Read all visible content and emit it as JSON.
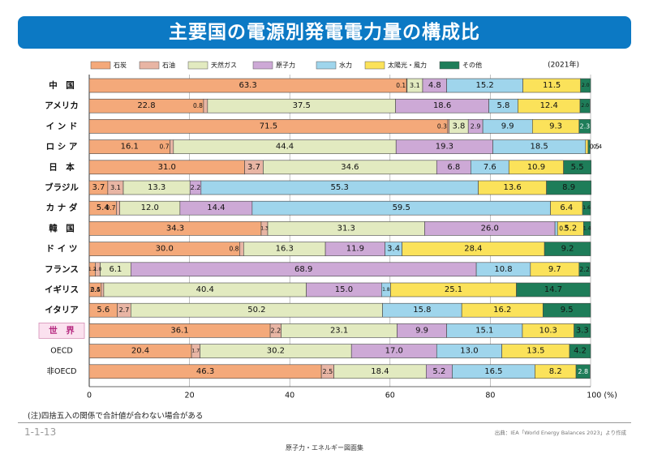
{
  "title": "主要国の電源別発電電力量の構成比",
  "year_label": "(2021年)",
  "note": "(注)四捨五入の関係で合計値が合わない場合がある",
  "page_number": "1-1-13",
  "source": "出典：IEA「World Energy Balances 2023」より作成",
  "book_title": "原子力・エネルギー図面集",
  "chart_data": {
    "type": "bar",
    "orientation": "horizontal",
    "stacked": true,
    "xlim": [
      0,
      100
    ],
    "x_ticks": [
      "0",
      "20",
      "40",
      "60",
      "80",
      "100 (%)"
    ],
    "legend_position": "top",
    "categories": [
      "中　国",
      "アメリカ",
      "イ ン ド",
      "ロ シ ア",
      "日　本",
      "ブラジル",
      "カ ナ ダ",
      "韓　国",
      "ド イ ツ",
      "フランス",
      "イギリス",
      "イタリア",
      "世　界",
      "OECD",
      "非OECD"
    ],
    "series": [
      {
        "name": "石炭",
        "color": "#f4a97a",
        "values": [
          63.3,
          22.8,
          71.5,
          16.1,
          31.0,
          3.7,
          5.4,
          34.3,
          30.0,
          1.2,
          2.4,
          5.6,
          36.1,
          20.4,
          46.3
        ],
        "labels": [
          "63.3",
          "22.8",
          "71.5",
          "16.1",
          "31.0",
          "3.7",
          "5.4",
          "34.3",
          "30.0",
          "1.2",
          "2.4",
          "5.6",
          "36.1",
          "20.4",
          "46.3"
        ]
      },
      {
        "name": "石油",
        "color": "#e8b5a4",
        "values": [
          0.1,
          0.8,
          0.3,
          0.7,
          3.7,
          3.1,
          0.7,
          1.3,
          0.8,
          1.0,
          0.5,
          2.7,
          2.2,
          1.7,
          2.5
        ],
        "labels": [
          "0.1",
          "0.8",
          "0.3",
          "0.7",
          "3.7",
          "3.1",
          "0.7",
          "1.3",
          "0.8",
          "1.0",
          "0.5",
          "2.7",
          "2.2",
          "1.7",
          "2.5"
        ]
      },
      {
        "name": "天然ガス",
        "color": "#e2eac0",
        "values": [
          3.1,
          37.5,
          3.8,
          44.4,
          34.6,
          13.3,
          12.0,
          31.3,
          16.3,
          6.1,
          40.4,
          50.2,
          23.1,
          30.2,
          18.4
        ],
        "labels": [
          "3.1",
          "37.5",
          "3.8",
          "44.4",
          "34.6",
          "13.3",
          "12.0",
          "31.3",
          "16.3",
          "6.1",
          "40.4",
          "50.2",
          "23.1",
          "30.2",
          "18.4"
        ]
      },
      {
        "name": "原子力",
        "color": "#cda9d6",
        "values": [
          4.8,
          18.6,
          2.9,
          19.3,
          6.8,
          2.2,
          14.4,
          26.0,
          11.9,
          68.9,
          15.0,
          0,
          9.9,
          17.0,
          5.2
        ],
        "labels": [
          "4.8",
          "18.6",
          "2.9",
          "19.3",
          "6.8",
          "2.2",
          "14.4",
          "26.0",
          "11.9",
          "68.9",
          "15.0",
          "",
          "9.9",
          "17.0",
          "5.2"
        ]
      },
      {
        "name": "水力",
        "color": "#9fd5ec",
        "values": [
          15.2,
          5.8,
          9.9,
          18.5,
          7.6,
          55.3,
          59.5,
          0.5,
          3.4,
          10.8,
          1.8,
          15.8,
          15.1,
          13.0,
          16.5
        ],
        "labels": [
          "15.2",
          "5.8",
          "9.9",
          "18.5",
          "7.6",
          "55.3",
          "59.5",
          "0.5",
          "3.4",
          "10.8",
          "1.8",
          "15.8",
          "15.1",
          "13.0",
          "16.5"
        ]
      },
      {
        "name": "太陽光・風力",
        "color": "#fbe25a",
        "values": [
          11.5,
          12.4,
          9.3,
          0.5,
          10.9,
          13.6,
          6.4,
          5.2,
          28.4,
          9.7,
          25.1,
          16.2,
          10.3,
          13.5,
          8.2
        ],
        "labels": [
          "11.5",
          "12.4",
          "9.3",
          "0.5",
          "10.9",
          "13.6",
          "6.4",
          "5.2",
          "28.4",
          "9.7",
          "25.1",
          "16.2",
          "10.3",
          "13.5",
          "8.2"
        ]
      },
      {
        "name": "その他",
        "color": "#1e7d59",
        "values": [
          2.0,
          2.0,
          2.3,
          0.4,
          5.5,
          8.9,
          1.6,
          1.4,
          9.2,
          2.2,
          14.7,
          9.5,
          3.3,
          4.2,
          2.8
        ],
        "labels": [
          "2.0",
          "2.0",
          "2.3",
          "0.4",
          "5.5",
          "8.9",
          "1.6",
          "1.4",
          "9.2",
          "2.2",
          "14.7",
          "9.5",
          "3.3",
          "4.2",
          "2.8"
        ]
      }
    ]
  }
}
